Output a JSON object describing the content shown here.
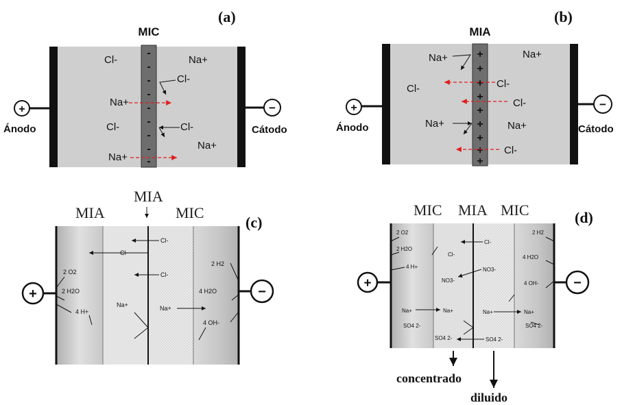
{
  "panels": {
    "a": {
      "label": "(a)",
      "membrane": "MIC",
      "membrane_signs": [
        "-",
        "-",
        "-",
        "-",
        "-",
        "-",
        "-",
        "-",
        "-"
      ],
      "anode": "Ánodo",
      "cathode": "Cátodo",
      "anode_sign": "+",
      "cathode_sign": "−",
      "ions": [
        "Cl-",
        "Na+",
        "Cl-",
        "Na+",
        "Cl-",
        "Cl-",
        "Na+",
        "Na+"
      ]
    },
    "b": {
      "label": "(b)",
      "membrane": "MIA",
      "membrane_signs": [
        "+",
        "+",
        "+",
        "+",
        "+",
        "+",
        "+",
        "+",
        "+"
      ],
      "anode": "Ánodo",
      "cathode": "Cátodo",
      "anode_sign": "+",
      "cathode_sign": "−",
      "ions": [
        "Na+",
        "Na+",
        "Cl-",
        "Cl-",
        "Cl-",
        "Na+",
        "Na+",
        "Cl-"
      ]
    },
    "c": {
      "label": "(c)",
      "mem_left": "MIA",
      "mem_mid": "MIA",
      "mem_right": "MIC",
      "anode_sign": "+",
      "cathode_sign": "−",
      "species": [
        "Cl-",
        "Cl-",
        "Cl-",
        "2 O2",
        "2 H2O",
        "4 H+",
        "Na+",
        "Na+",
        "2 H2",
        "4 H2O",
        "4 OH-"
      ]
    },
    "d": {
      "label": "(d)",
      "mem_left": "MIC",
      "mem_mid": "MIA",
      "mem_right": "MIC",
      "anode_sign": "+",
      "cathode_sign": "−",
      "species": [
        "2 O2",
        "2 H2O",
        "Cl-",
        "Cl-",
        "4 H+",
        "NO3-",
        "NO3-",
        "Na+",
        "Na+",
        "SO4 2-",
        "SO4 2-",
        "SO4 2-",
        "Na+",
        "Na+",
        "SO4 2-",
        "2 H2",
        "4 H2O",
        "4 OH-"
      ],
      "out_left": "concentrado",
      "out_right": "diluido"
    }
  },
  "colors": {
    "cell_fill": "#cfcfcf",
    "electrode": "#111111",
    "membrane_fill": "#6e6e6e",
    "dashed_arrow": "#e21b1b"
  }
}
